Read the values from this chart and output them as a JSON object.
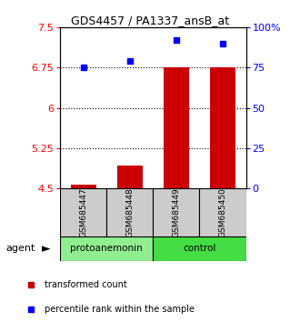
{
  "title": "GDS4457 / PA1337_ansB_at",
  "samples": [
    "GSM685447",
    "GSM685448",
    "GSM685449",
    "GSM685450"
  ],
  "transformed_counts": [
    4.57,
    4.92,
    6.75,
    6.75
  ],
  "percentile_ranks": [
    75,
    79,
    92,
    90
  ],
  "ylim_left": [
    4.5,
    7.5
  ],
  "ylim_right": [
    0,
    100
  ],
  "yticks_left": [
    4.5,
    5.25,
    6,
    6.75,
    7.5
  ],
  "yticks_right": [
    0,
    25,
    50,
    75,
    100
  ],
  "ytick_labels_right": [
    "0",
    "25",
    "50",
    "75",
    "100%"
  ],
  "groups": [
    {
      "label": "protoanemonin",
      "indices": [
        0,
        1
      ],
      "color": "#90ee90"
    },
    {
      "label": "control",
      "indices": [
        2,
        3
      ],
      "color": "#44dd44"
    }
  ],
  "bar_color": "#cc0000",
  "dot_color": "#0000ff",
  "bar_width": 0.55,
  "background_sample": "#cccccc",
  "agent_label": "agent",
  "legend_items": [
    "transformed count",
    "percentile rank within the sample"
  ],
  "title_fontsize": 9,
  "axis_fontsize": 8,
  "sample_fontsize": 6.5,
  "group_fontsize": 7.5,
  "legend_fontsize": 7
}
